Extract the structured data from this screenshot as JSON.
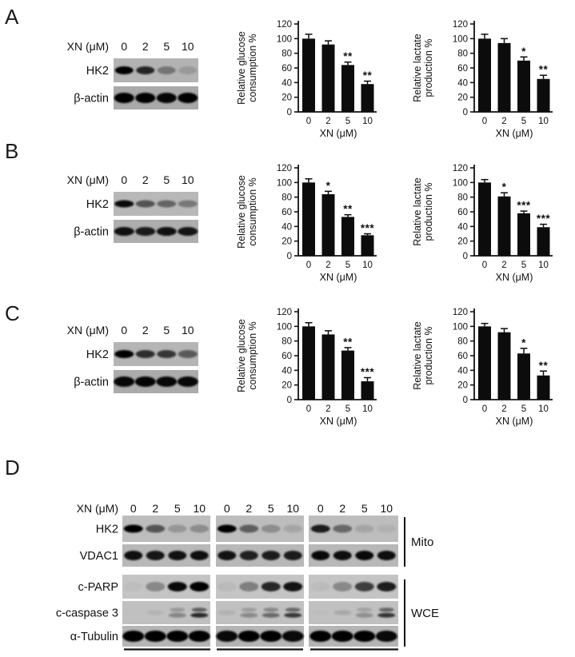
{
  "figure_colors": {
    "background": "#ffffff",
    "bar_fill": "#0c0c0c",
    "axis": "#111111"
  },
  "panels": [
    {
      "letter": "A",
      "blot": {
        "header": "XN (μM)",
        "lanes": [
          "0",
          "2",
          "5",
          "10"
        ],
        "rows": [
          {
            "label": "HK2",
            "bg": "#b3b3b3",
            "band_ry": 5,
            "band_rx": 11.5,
            "bands": [
              1.0,
              0.8,
              0.35,
              0.14
            ]
          },
          {
            "label": "β-actin",
            "bg": "#a9a9a9",
            "band_ry": 6.5,
            "band_rx": 12.5,
            "bands": [
              1.0,
              1.0,
              0.97,
              1.0
            ]
          }
        ]
      }
    },
    {
      "letter": "B",
      "blot": {
        "header": "XN (μM)",
        "lanes": [
          "0",
          "2",
          "5",
          "10"
        ],
        "rows": [
          {
            "label": "HK2",
            "bg": "#b8b8b8",
            "band_ry": 4.5,
            "band_rx": 12,
            "bands": [
              0.95,
              0.55,
              0.45,
              0.35
            ]
          },
          {
            "label": "β-actin",
            "bg": "#aeaeae",
            "band_ry": 5.5,
            "band_rx": 12.5,
            "bands": [
              0.9,
              0.85,
              0.9,
              0.88
            ]
          }
        ]
      }
    },
    {
      "letter": "C",
      "blot": {
        "header": "XN (μM)",
        "lanes": [
          "0",
          "2",
          "5",
          "10"
        ],
        "rows": [
          {
            "label": "HK2",
            "bg": "#b5b5b5",
            "band_ry": 5,
            "band_rx": 12,
            "bands": [
              1.0,
              0.75,
              0.7,
              0.5
            ]
          },
          {
            "label": "β-actin",
            "bg": "#ababab",
            "band_ry": 6.5,
            "band_rx": 13,
            "bands": [
              0.95,
              0.97,
              0.95,
              0.95
            ]
          }
        ]
      }
    }
  ],
  "chart_data": [
    {
      "panel": "A",
      "slot": 0,
      "type": "bar",
      "ylabel": "Relative glucose consumption %",
      "ylabel_lines": [
        "Relative glucose",
        "consumption %"
      ],
      "xlabel": "XN (μM)",
      "categories": [
        "0",
        "2",
        "5",
        "10"
      ],
      "values": [
        100,
        92,
        64,
        38
      ],
      "errors": [
        6,
        5,
        4,
        4
      ],
      "significance": [
        "",
        "",
        "**",
        "**"
      ],
      "ylim": [
        0,
        120
      ],
      "ytick_step": 20
    },
    {
      "panel": "A",
      "slot": 1,
      "type": "bar",
      "ylabel": "Relative lactate production %",
      "ylabel_lines": [
        "Relative lactate",
        "production %"
      ],
      "xlabel": "XN (μM)",
      "categories": [
        "0",
        "2",
        "5",
        "10"
      ],
      "values": [
        100,
        94,
        70,
        45
      ],
      "errors": [
        6,
        6,
        5,
        5
      ],
      "significance": [
        "",
        "",
        "*",
        "**"
      ],
      "ylim": [
        0,
        120
      ],
      "ytick_step": 20
    },
    {
      "panel": "B",
      "slot": 0,
      "type": "bar",
      "ylabel": "Relative glucose consumption %",
      "ylabel_lines": [
        "Relative glucose",
        "consumption %"
      ],
      "xlabel": "XN (μM)",
      "categories": [
        "0",
        "2",
        "5",
        "10"
      ],
      "values": [
        100,
        84,
        53,
        28
      ],
      "errors": [
        5,
        4,
        3,
        2
      ],
      "significance": [
        "",
        "*",
        "**",
        "***"
      ],
      "ylim": [
        0,
        120
      ],
      "ytick_step": 20
    },
    {
      "panel": "B",
      "slot": 1,
      "type": "bar",
      "ylabel": "Relative lactate production %",
      "ylabel_lines": [
        "Relative lactate",
        "production %"
      ],
      "xlabel": "XN (μM)",
      "categories": [
        "0",
        "2",
        "5",
        "10"
      ],
      "values": [
        100,
        81,
        58,
        39
      ],
      "errors": [
        4,
        5,
        3,
        4
      ],
      "significance": [
        "",
        "*",
        "***",
        "***"
      ],
      "ylim": [
        0,
        120
      ],
      "ytick_step": 20
    },
    {
      "panel": "C",
      "slot": 0,
      "type": "bar",
      "ylabel": "Relative glucose consumption %",
      "ylabel_lines": [
        "Relative glucose",
        "consumption %"
      ],
      "xlabel": "XN (μM)",
      "categories": [
        "0",
        "2",
        "5",
        "10"
      ],
      "values": [
        100,
        89,
        67,
        25
      ],
      "errors": [
        5,
        5,
        4,
        5
      ],
      "significance": [
        "",
        "",
        "**",
        "***"
      ],
      "ylim": [
        0,
        120
      ],
      "ytick_step": 20
    },
    {
      "panel": "C",
      "slot": 1,
      "type": "bar",
      "ylabel": "Relative lactate production %",
      "ylabel_lines": [
        "Relative lactate",
        "production %"
      ],
      "xlabel": "XN (μM)",
      "categories": [
        "0",
        "2",
        "5",
        "10"
      ],
      "values": [
        100,
        92,
        63,
        33
      ],
      "errors": [
        4,
        5,
        7,
        6
      ],
      "significance": [
        "",
        "",
        "*",
        "**"
      ],
      "ylim": [
        0,
        120
      ],
      "ytick_step": 20
    }
  ],
  "panel_d": {
    "letter": "D",
    "header": "XN (μM)",
    "lanes": [
      "0",
      "2",
      "5",
      "10"
    ],
    "group_count": 3,
    "rows": [
      {
        "label": "HK2",
        "section": "Mito",
        "bg": "#bdbdbd",
        "band_ry": 5,
        "band_rx": 12,
        "groups": [
          [
            1.0,
            0.55,
            0.2,
            0.25
          ],
          [
            1.0,
            0.5,
            0.25,
            0.12
          ],
          [
            0.85,
            0.45,
            0.12,
            0.06
          ]
        ]
      },
      {
        "label": "VDAC1",
        "section": "Mito",
        "bg": "#b8b8b8",
        "band_ry": 6,
        "band_rx": 11.5,
        "groups": [
          [
            0.92,
            0.88,
            0.9,
            0.92
          ],
          [
            0.9,
            0.82,
            0.85,
            0.85
          ],
          [
            0.95,
            0.92,
            0.95,
            0.92
          ]
        ]
      },
      {
        "label": "c-PARP",
        "section": "WCE",
        "bg": "#c4c4c4",
        "band_ry": 6,
        "band_rx": 12,
        "groups": [
          [
            0.03,
            0.3,
            0.95,
            1.0
          ],
          [
            0.05,
            0.35,
            0.8,
            0.9
          ],
          [
            0.04,
            0.3,
            0.68,
            0.85
          ]
        ]
      },
      {
        "label": "c-caspase 3",
        "section": "WCE",
        "bg": "#c0c0c0",
        "band_ry": 3,
        "band_rx": 11,
        "doublet": true,
        "groups": [
          [
            0.0,
            0.06,
            0.3,
            0.78
          ],
          [
            0.08,
            0.28,
            0.45,
            0.7
          ],
          [
            0.02,
            0.12,
            0.25,
            0.72
          ]
        ]
      },
      {
        "label": "α-Tubulin",
        "section": "WCE",
        "bg": "#b5b5b5",
        "band_ry": 7,
        "band_rx": 13.5,
        "groups": [
          [
            1.0,
            1.0,
            1.0,
            1.0
          ],
          [
            0.95,
            1.0,
            1.0,
            0.95
          ],
          [
            1.0,
            1.0,
            1.0,
            0.95
          ]
        ]
      }
    ],
    "sections": [
      {
        "label": "Mito"
      },
      {
        "label": "WCE"
      }
    ]
  }
}
